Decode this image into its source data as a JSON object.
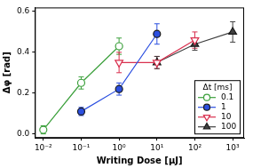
{
  "chart_data": {
    "type": "line",
    "x_label": "Writing Dose [μJ]",
    "y_label": "Δφ [rad]",
    "legend_title": "Δt [ms]",
    "log": "x",
    "grid": false,
    "legend": "lower right",
    "xlim": [
      0.006,
      2000
    ],
    "xticks": [
      {
        "value": 0.01,
        "label": "10⁻²"
      },
      {
        "value": 0.1,
        "label": "10⁻¹"
      },
      {
        "value": 1,
        "label": "10⁰"
      },
      {
        "value": 10,
        "label": "10¹"
      },
      {
        "value": 100,
        "label": "10²"
      },
      {
        "value": 1000,
        "label": "10³"
      }
    ],
    "ylim": [
      -0.02,
      0.62
    ],
    "yticks": [
      {
        "value": 0,
        "label": "0.0"
      },
      0.2,
      0.4,
      0.6
    ],
    "series": [
      {
        "name": "0.1",
        "color": "#3ca03c",
        "marker": "circle-open",
        "x": [
          0.01,
          0.1,
          1
        ],
        "values": [
          0.02,
          0.25,
          0.43
        ],
        "errors": [
          0.02,
          0.03,
          0.04
        ]
      },
      {
        "name": "1",
        "color": "#2b4fe0",
        "marker": "circle",
        "x": [
          0.1,
          1,
          10
        ],
        "values": [
          0.11,
          0.22,
          0.49
        ],
        "errors": [
          0.02,
          0.03,
          0.05
        ]
      },
      {
        "name": "10",
        "color": "#d9304f",
        "marker": "triangle-down-open",
        "x": [
          1,
          10,
          100
        ],
        "values": [
          0.35,
          0.35,
          0.46
        ],
        "errors": [
          0.05,
          0.03,
          0.04
        ]
      },
      {
        "name": "100",
        "color": "#404040",
        "marker": "triangle",
        "x": [
          10,
          100,
          1000
        ],
        "values": [
          0.35,
          0.44,
          0.5
        ],
        "errors": [
          0.03,
          0.03,
          0.05
        ]
      }
    ]
  }
}
